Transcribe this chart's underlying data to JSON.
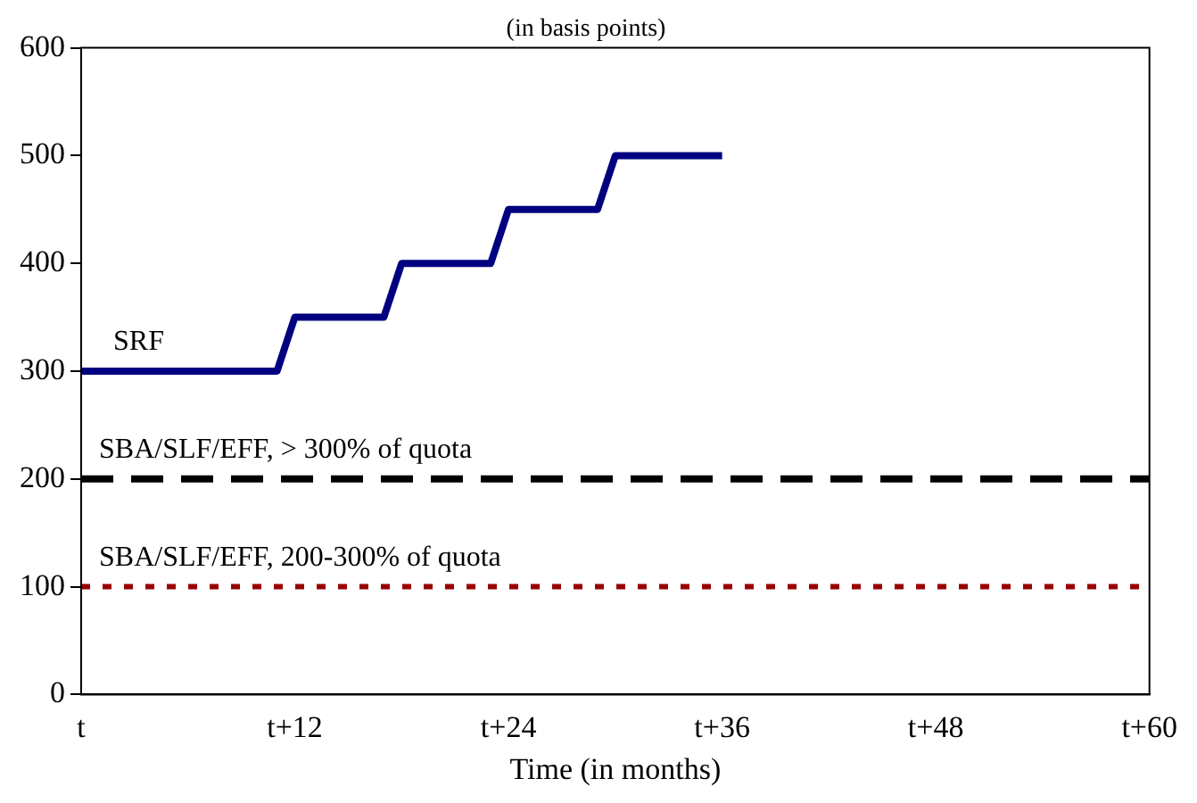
{
  "chart_data": {
    "type": "line",
    "title": "(in basis points)",
    "xlabel": "Time (in months)",
    "categories": [
      "t",
      null,
      null,
      null,
      null,
      null,
      null,
      null,
      null,
      null,
      null,
      null,
      "t+12",
      null,
      null,
      null,
      null,
      null,
      null,
      null,
      null,
      null,
      null,
      null,
      "t+24",
      null,
      null,
      null,
      null,
      null,
      null,
      null,
      null,
      null,
      null,
      null,
      "t+36",
      null,
      null,
      null,
      null,
      null,
      null,
      null,
      null,
      null,
      null,
      null,
      "t+48",
      null,
      null,
      null,
      null,
      null,
      null,
      null,
      null,
      null,
      null,
      null,
      "t+60"
    ],
    "ylim": [
      0,
      600
    ],
    "yticks": [
      0,
      100,
      200,
      300,
      400,
      500,
      600
    ],
    "series": [
      {
        "name": "SRF",
        "color": "#000080",
        "line_style": "solid",
        "values": [
          300,
          300,
          300,
          300,
          300,
          300,
          300,
          300,
          300,
          300,
          300,
          300,
          350,
          350,
          350,
          350,
          350,
          350,
          400,
          400,
          400,
          400,
          400,
          400,
          450,
          450,
          450,
          450,
          450,
          450,
          500,
          500,
          500,
          500,
          500,
          500,
          500,
          null,
          null,
          null,
          null,
          null,
          null,
          null,
          null,
          null,
          null,
          null,
          null,
          null,
          null,
          null,
          null,
          null,
          null,
          null,
          null,
          null,
          null,
          null,
          null
        ]
      },
      {
        "name": "SBA/SLF/EFF, > 300% of quota",
        "color": "#000000",
        "line_style": "dashed",
        "values": [
          200,
          200,
          200,
          200,
          200,
          200,
          200,
          200,
          200,
          200,
          200,
          200,
          200,
          200,
          200,
          200,
          200,
          200,
          200,
          200,
          200,
          200,
          200,
          200,
          200,
          200,
          200,
          200,
          200,
          200,
          200,
          200,
          200,
          200,
          200,
          200,
          200,
          200,
          200,
          200,
          200,
          200,
          200,
          200,
          200,
          200,
          200,
          200,
          200,
          200,
          200,
          200,
          200,
          200,
          200,
          200,
          200,
          200,
          200,
          200,
          200
        ]
      },
      {
        "name": "SBA/SLF/EFF, 200-300% of quota",
        "color": "#990000",
        "line_style": "dotted",
        "values": [
          100,
          100,
          100,
          100,
          100,
          100,
          100,
          100,
          100,
          100,
          100,
          100,
          100,
          100,
          100,
          100,
          100,
          100,
          100,
          100,
          100,
          100,
          100,
          100,
          100,
          100,
          100,
          100,
          100,
          100,
          100,
          100,
          100,
          100,
          100,
          100,
          100,
          100,
          100,
          100,
          100,
          100,
          100,
          100,
          100,
          100,
          100,
          100,
          100,
          100,
          100,
          100,
          100,
          100,
          100,
          100,
          100,
          100,
          100,
          100,
          100
        ]
      }
    ],
    "grid": false,
    "legend": false,
    "marker": "none"
  }
}
